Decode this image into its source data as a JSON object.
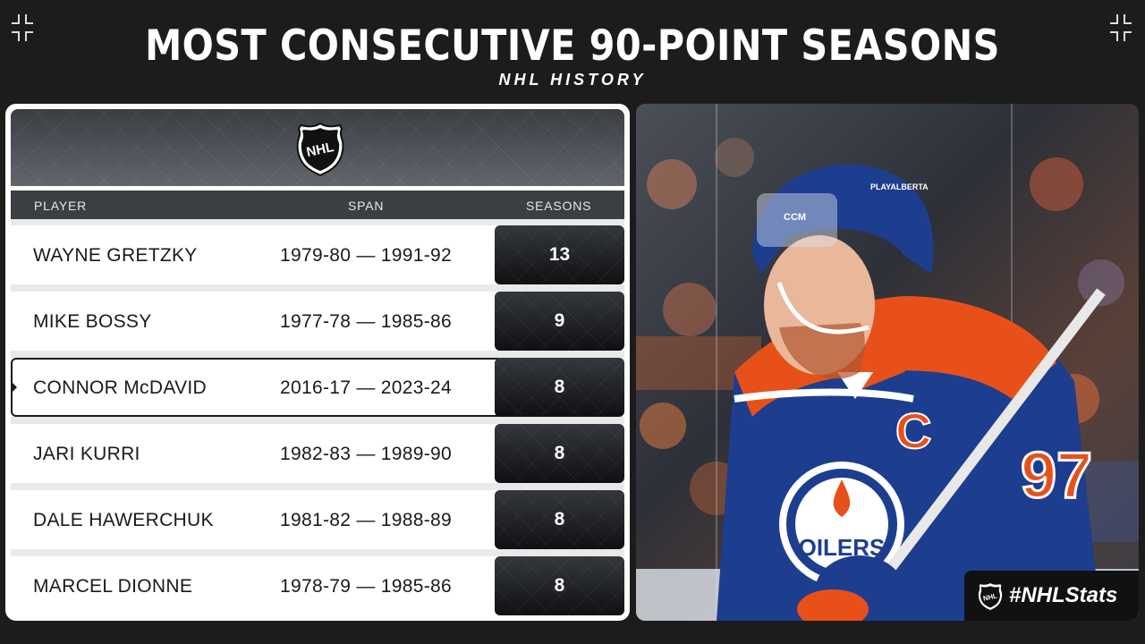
{
  "header": {
    "title": "MOST CONSECUTIVE 90-POINT SEASONS",
    "subtitle": "NHL HISTORY"
  },
  "table": {
    "logo_icon": "nhl-shield-icon",
    "columns": {
      "player": "PLAYER",
      "span": "SPAN",
      "seasons": "SEASONS"
    },
    "rows": [
      {
        "player": "WAYNE GRETZKY",
        "span": "1979-80 — 1991-92",
        "seasons": "13",
        "highlight": false
      },
      {
        "player": "MIKE BOSSY",
        "span": "1977-78 — 1985-86",
        "seasons": "9",
        "highlight": false
      },
      {
        "player": "CONNOR McDAVID",
        "span": "2016-17 — 2023-24",
        "seasons": "8",
        "highlight": true
      },
      {
        "player": "JARI KURRI",
        "span": "1982-83 — 1989-90",
        "seasons": "8",
        "highlight": false
      },
      {
        "player": "DALE HAWERCHUK",
        "span": "1981-82 — 1988-89",
        "seasons": "8",
        "highlight": false
      },
      {
        "player": "MARCEL DIONNE",
        "span": "1978-79 — 1985-86",
        "seasons": "8",
        "highlight": false
      }
    ]
  },
  "photo": {
    "jersey_number": "97",
    "captain_letter": "C",
    "team_logo_text": "OILERS",
    "helmet_brand": "CCM",
    "helmet_sticker": "PLAYALBERTA"
  },
  "hashtag": {
    "icon": "nhl-shield-icon",
    "text": "#NHLStats"
  },
  "colors": {
    "background": "#1c1c1c",
    "header_gray": "#3b3e43",
    "oilers_blue": "#1d3d8f",
    "oilers_orange": "#e8501a"
  }
}
